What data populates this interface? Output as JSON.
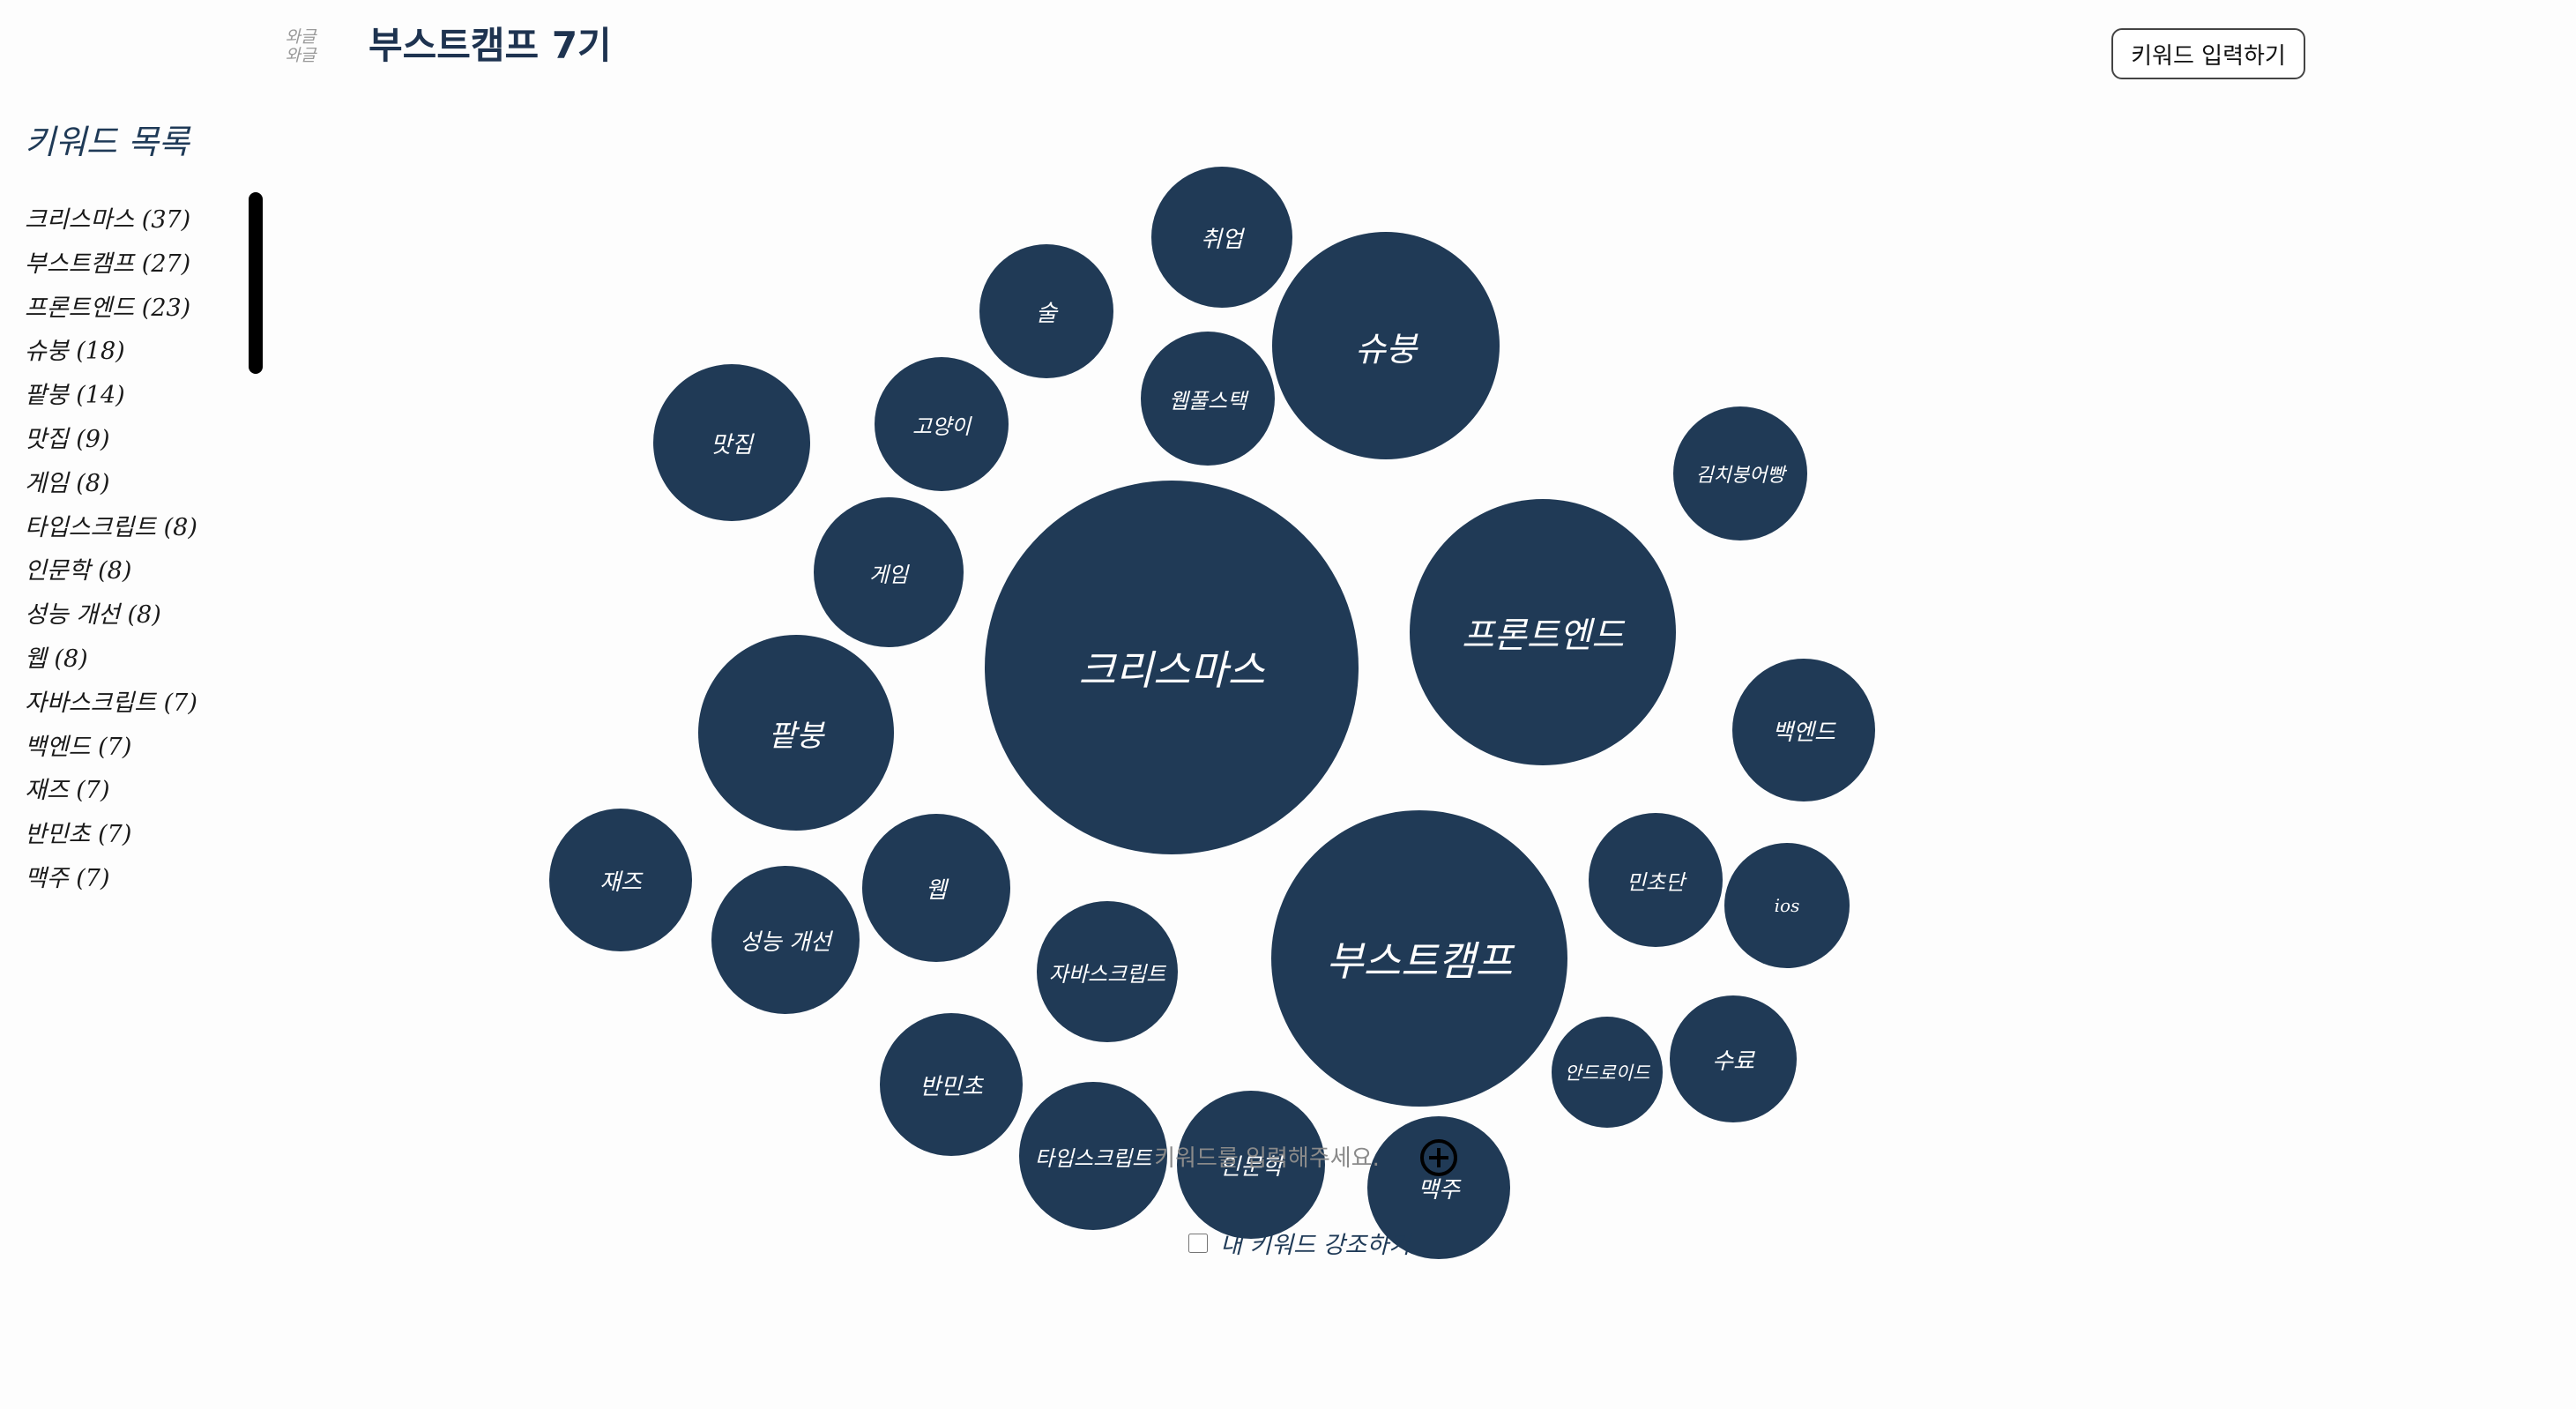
{
  "header": {
    "logo_text": "와글\n와글",
    "title": "부스트캠프 7기",
    "keyword_input_button": "키워드 입력하기"
  },
  "sidebar": {
    "title": "키워드 목록",
    "items": [
      "크리스마스 (37)",
      "부스트캠프 (27)",
      "프론트엔드 (23)",
      "슈붕 (18)",
      "팥붕 (14)",
      "맛집 (9)",
      "게임 (8)",
      "타입스크립트 (8)",
      "인문학 (8)",
      "성능 개선 (8)",
      "웹 (8)",
      "자바스크립트 (7)",
      "백엔드 (7)",
      "재즈 (7)",
      "반민초 (7)",
      "맥주 (7)"
    ]
  },
  "bubbles": [
    {
      "label": "크리스마스"
    },
    {
      "label": "부스트캠프"
    },
    {
      "label": "프론트엔드"
    },
    {
      "label": "슈붕"
    },
    {
      "label": "팥붕"
    },
    {
      "label": "맛집"
    },
    {
      "label": "게임"
    },
    {
      "label": "고양이"
    },
    {
      "label": "술"
    },
    {
      "label": "취업"
    },
    {
      "label": "웹풀스택"
    },
    {
      "label": "김치붕어빵"
    },
    {
      "label": "백엔드"
    },
    {
      "label": "민초단"
    },
    {
      "label": "ios"
    },
    {
      "label": "수료"
    },
    {
      "label": "안드로이드"
    },
    {
      "label": "맥주"
    },
    {
      "label": "인문학"
    },
    {
      "label": "타입스크립트"
    },
    {
      "label": "반민초"
    },
    {
      "label": "자바스크립트"
    },
    {
      "label": "웹"
    },
    {
      "label": "성능 개선"
    },
    {
      "label": "재즈"
    }
  ],
  "keyword_input": {
    "placeholder": "키워드를 입력해주세요.",
    "value": ""
  },
  "highlight": {
    "label": "내 키워드 강조하기",
    "checked": false
  },
  "colors": {
    "bubble": "#203a56",
    "background": "#fdfdfd"
  }
}
